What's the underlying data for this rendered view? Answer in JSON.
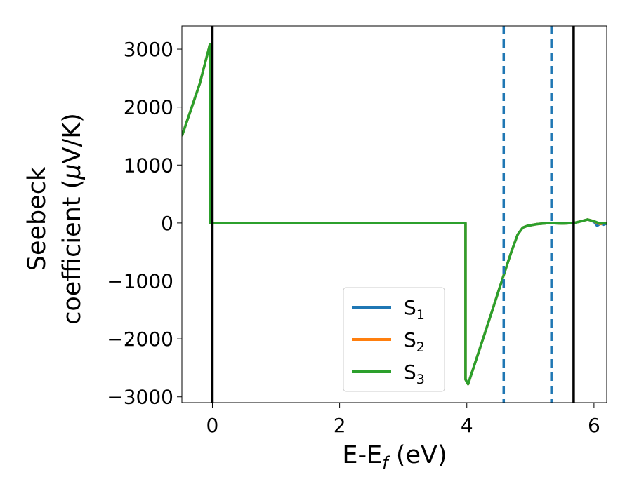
{
  "chart_data": {
    "type": "line",
    "title": "",
    "xlabel": "E-E",
    "xlabel_sub": "f",
    "xlabel_unit": " (eV)",
    "ylabel_line1": "Seebeck",
    "ylabel_line2": "coefficient  (",
    "ylabel_mu": "μ",
    "ylabel_unit": "V/K)",
    "xlim": [
      -0.48,
      6.2
    ],
    "ylim": [
      -3100,
      3400
    ],
    "xticks": [
      0,
      2,
      4,
      6
    ],
    "xtick_labels": [
      "0",
      "2",
      "4",
      "6"
    ],
    "yticks": [
      -3000,
      -2000,
      -1000,
      0,
      1000,
      2000,
      3000
    ],
    "ytick_labels": [
      "−3000",
      "−2000",
      "−1000",
      "0",
      "1000",
      "2000",
      "3000"
    ],
    "grid": false,
    "legend_position": "lower-right",
    "vlines": [
      {
        "x": 0.0,
        "style": "solid",
        "color": "#000000"
      },
      {
        "x": 4.58,
        "style": "dashed",
        "color": "#1f77b4"
      },
      {
        "x": 5.33,
        "style": "dashed",
        "color": "#1f77b4"
      },
      {
        "x": 5.68,
        "style": "solid",
        "color": "#000000"
      }
    ],
    "series": [
      {
        "name": "S",
        "sub": "1",
        "color": "#1f77b4",
        "x": [
          -0.48,
          -0.2,
          -0.04,
          -0.04,
          0.3,
          1.0,
          2.0,
          3.0,
          3.98,
          3.98,
          4.02,
          4.3,
          4.58,
          4.7,
          4.8,
          4.88,
          4.95,
          5.1,
          5.3,
          5.5,
          5.68,
          5.8,
          5.9,
          6.0,
          6.05,
          6.1,
          6.15,
          6.2
        ],
        "y": [
          1500,
          2400,
          3080,
          0,
          0,
          0,
          0,
          0,
          0,
          -2700,
          -2780,
          -1850,
          -900,
          -500,
          -200,
          -80,
          -50,
          -20,
          0,
          -10,
          0,
          30,
          60,
          20,
          -50,
          -10,
          -30,
          -10
        ]
      },
      {
        "name": "S",
        "sub": "2",
        "color": "#ff7f0e",
        "x": [
          -0.48,
          -0.2,
          -0.04,
          -0.04,
          0.3,
          1.0,
          2.0,
          3.0,
          3.98,
          3.98,
          4.02,
          4.3,
          4.58,
          4.7,
          4.8,
          4.88,
          4.95,
          5.1,
          5.3,
          5.5,
          5.68,
          5.8,
          5.9,
          6.0,
          6.05,
          6.1,
          6.15,
          6.2
        ],
        "y": [
          1500,
          2400,
          3080,
          0,
          0,
          0,
          0,
          0,
          0,
          -2700,
          -2780,
          -1850,
          -900,
          -500,
          -200,
          -80,
          -50,
          -20,
          0,
          -10,
          0,
          30,
          60,
          30,
          0,
          -20,
          0,
          -10
        ]
      },
      {
        "name": "S",
        "sub": "3",
        "color": "#2ca02c",
        "x": [
          -0.48,
          -0.2,
          -0.04,
          -0.04,
          0.3,
          1.0,
          2.0,
          3.0,
          3.98,
          3.98,
          4.02,
          4.3,
          4.58,
          4.7,
          4.8,
          4.88,
          4.95,
          5.1,
          5.3,
          5.5,
          5.68,
          5.8,
          5.9,
          6.0,
          6.05,
          6.1,
          6.15,
          6.2
        ],
        "y": [
          1500,
          2400,
          3080,
          0,
          0,
          0,
          0,
          0,
          0,
          -2700,
          -2780,
          -1850,
          -900,
          -500,
          -200,
          -80,
          -50,
          -20,
          0,
          -10,
          0,
          30,
          60,
          30,
          10,
          -10,
          0,
          -10
        ]
      }
    ]
  }
}
